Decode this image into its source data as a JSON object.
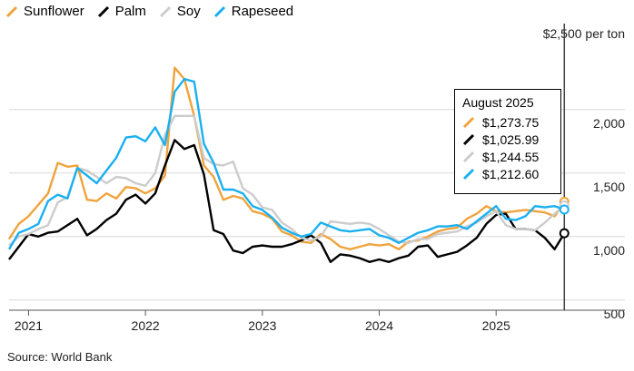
{
  "legend": [
    {
      "name": "Sunflower",
      "color": "#f0a33c"
    },
    {
      "name": "Palm",
      "color": "#000000"
    },
    {
      "name": "Soy",
      "color": "#cccccc"
    },
    {
      "name": "Rapeseed",
      "color": "#1ab0f0"
    }
  ],
  "source": "Source: World Bank",
  "tooltip": {
    "title": "August 2025",
    "rows": [
      {
        "value": "$1,273.75",
        "color": "#f0a33c"
      },
      {
        "value": "$1,025.99",
        "color": "#000000"
      },
      {
        "value": "$1,244.55",
        "color": "#cccccc"
      },
      {
        "value": "$1,212.60",
        "color": "#1ab0f0"
      }
    ]
  },
  "chart_data": {
    "type": "line",
    "unit_label": "$2,500 per ton",
    "y_ticks": [
      "2,000",
      "1,500",
      "1,000",
      "500"
    ],
    "y_tick_values": [
      2000,
      1500,
      1000,
      500
    ],
    "ylim": [
      420,
      2520
    ],
    "x_ticks": [
      "2021",
      "2022",
      "2023",
      "2024",
      "2025"
    ],
    "x_tick_values": [
      "2021-01",
      "2022-01",
      "2023-01",
      "2024-01",
      "2025-01"
    ],
    "xlim": [
      "2020-11",
      "2025-09"
    ],
    "grid": true,
    "legend_position": "top-left",
    "x": [
      "2020-11",
      "2020-12",
      "2021-01",
      "2021-02",
      "2021-03",
      "2021-04",
      "2021-05",
      "2021-06",
      "2021-07",
      "2021-08",
      "2021-09",
      "2021-10",
      "2021-11",
      "2021-12",
      "2022-01",
      "2022-02",
      "2022-03",
      "2022-04",
      "2022-05",
      "2022-06",
      "2022-07",
      "2022-08",
      "2022-09",
      "2022-10",
      "2022-11",
      "2022-12",
      "2023-01",
      "2023-02",
      "2023-03",
      "2023-04",
      "2023-05",
      "2023-06",
      "2023-07",
      "2023-08",
      "2023-09",
      "2023-10",
      "2023-11",
      "2023-12",
      "2024-01",
      "2024-02",
      "2024-03",
      "2024-04",
      "2024-05",
      "2024-06",
      "2024-07",
      "2024-08",
      "2024-09",
      "2024-10",
      "2024-11",
      "2024-12",
      "2025-01",
      "2025-02",
      "2025-03",
      "2025-04",
      "2025-05",
      "2025-06",
      "2025-07",
      "2025-08"
    ],
    "series": [
      {
        "name": "Sunflower",
        "color": "#f0a33c",
        "values": [
          980,
          1100,
          1160,
          1250,
          1340,
          1580,
          1550,
          1560,
          1290,
          1280,
          1340,
          1300,
          1390,
          1380,
          1340,
          1380,
          1480,
          2330,
          2240,
          1950,
          1560,
          1470,
          1290,
          1320,
          1300,
          1200,
          1180,
          1140,
          1040,
          1010,
          960,
          950,
          1020,
          980,
          920,
          900,
          920,
          940,
          930,
          940,
          900,
          960,
          970,
          1000,
          1040,
          1060,
          1070,
          1140,
          1180,
          1240,
          1200,
          1190,
          1200,
          1210,
          1200,
          1190,
          1160,
          1274
        ]
      },
      {
        "name": "Palm",
        "color": "#000000",
        "values": [
          820,
          920,
          1020,
          1000,
          1030,
          1040,
          1090,
          1140,
          1010,
          1060,
          1130,
          1180,
          1290,
          1330,
          1260,
          1340,
          1560,
          1760,
          1690,
          1720,
          1490,
          1050,
          1020,
          890,
          870,
          920,
          930,
          920,
          920,
          940,
          970,
          1010,
          950,
          800,
          860,
          850,
          830,
          800,
          820,
          800,
          830,
          850,
          920,
          930,
          840,
          860,
          880,
          930,
          990,
          1100,
          1170,
          1180,
          1060,
          1060,
          1050,
          990,
          900,
          1026
        ]
      },
      {
        "name": "Soy",
        "color": "#cccccc",
        "values": [
          930,
          1000,
          1020,
          1060,
          1090,
          1270,
          1310,
          1540,
          1520,
          1470,
          1420,
          1470,
          1460,
          1420,
          1400,
          1500,
          1800,
          1950,
          1950,
          1950,
          1620,
          1570,
          1560,
          1590,
          1380,
          1330,
          1230,
          1210,
          1110,
          1060,
          990,
          970,
          1000,
          1120,
          1110,
          1100,
          1110,
          1100,
          1060,
          1010,
          960,
          950,
          980,
          980,
          1020,
          1030,
          1040,
          1080,
          1110,
          1160,
          1200,
          1090,
          1060,
          1060,
          1050,
          1110,
          1180,
          1245
        ]
      },
      {
        "name": "Rapeseed",
        "color": "#1ab0f0",
        "values": [
          900,
          1030,
          1060,
          1100,
          1280,
          1330,
          1300,
          1540,
          1480,
          1420,
          1520,
          1620,
          1780,
          1790,
          1750,
          1860,
          1720,
          2140,
          2240,
          2220,
          1730,
          1580,
          1370,
          1370,
          1340,
          1240,
          1210,
          1150,
          1070,
          1030,
          1000,
          1020,
          1110,
          1080,
          1050,
          1040,
          1050,
          1060,
          1010,
          990,
          950,
          990,
          1030,
          1050,
          1080,
          1080,
          1090,
          1060,
          1120,
          1180,
          1240,
          1140,
          1130,
          1160,
          1240,
          1230,
          1240,
          1213
        ]
      }
    ]
  }
}
